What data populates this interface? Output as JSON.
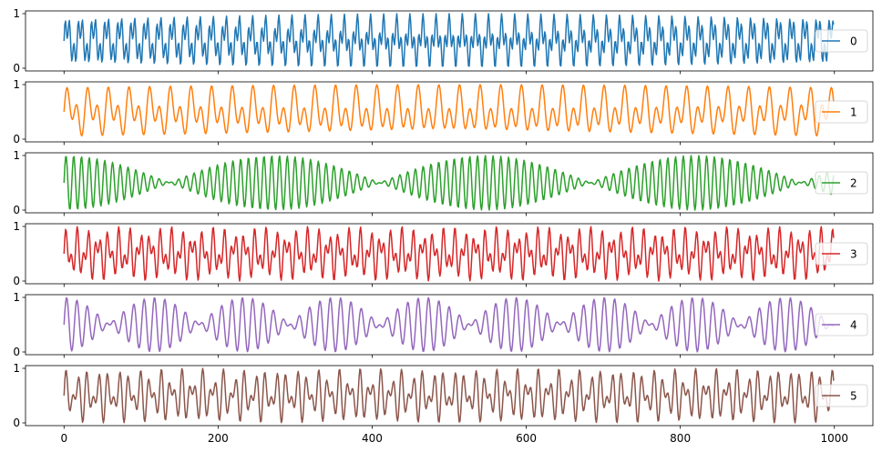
{
  "chart_data": {
    "type": "line",
    "layout": "stacked-subplots",
    "x_axis": {
      "xlim": [
        -50,
        1050
      ],
      "ticks": [
        0,
        200,
        400,
        600,
        800,
        1000
      ],
      "tick_labels": [
        "0",
        "200",
        "400",
        "600",
        "800",
        "1000"
      ],
      "label": ""
    },
    "y_axis": {
      "ylim": [
        -0.05,
        1.05
      ],
      "ticks": [
        0,
        1
      ],
      "tick_labels": [
        "0",
        "1"
      ],
      "label": ""
    },
    "n_points": 1000,
    "series": [
      {
        "name": "0",
        "color": "#1f77b4",
        "signal": {
          "kind": "two-tone",
          "f1": 0.0585,
          "f2": 0.1765,
          "a1": 0.27,
          "a2": 0.23,
          "offset": 0.5
        }
      },
      {
        "name": "1",
        "color": "#ff7f0e",
        "signal": {
          "kind": "two-tone",
          "f1": 0.0745,
          "f2": 0.0375,
          "a1": 0.28,
          "a2": 0.22,
          "offset": 0.5
        }
      },
      {
        "name": "2",
        "color": "#2ca02c",
        "signal": {
          "kind": "beat",
          "carrier": 0.0992,
          "envelope": 0.00183,
          "amplitude": 0.5,
          "offset": 0.5
        }
      },
      {
        "name": "3",
        "color": "#d62728",
        "signal": {
          "kind": "two-tone",
          "f1": 0.0735,
          "f2": 0.1305,
          "a1": 0.26,
          "a2": 0.24,
          "offset": 0.5
        }
      },
      {
        "name": "4",
        "color": "#9467bd",
        "signal": {
          "kind": "beat",
          "carrier": 0.0745,
          "envelope": 0.00427,
          "amplitude": 0.5,
          "offset": 0.5
        }
      },
      {
        "name": "5",
        "color": "#8c564b",
        "signal": {
          "kind": "two-tone",
          "f1": 0.0735,
          "f2": 0.1125,
          "a1": 0.26,
          "a2": 0.24,
          "offset": 0.5
        }
      }
    ],
    "legend_position": "right",
    "grid": false
  }
}
